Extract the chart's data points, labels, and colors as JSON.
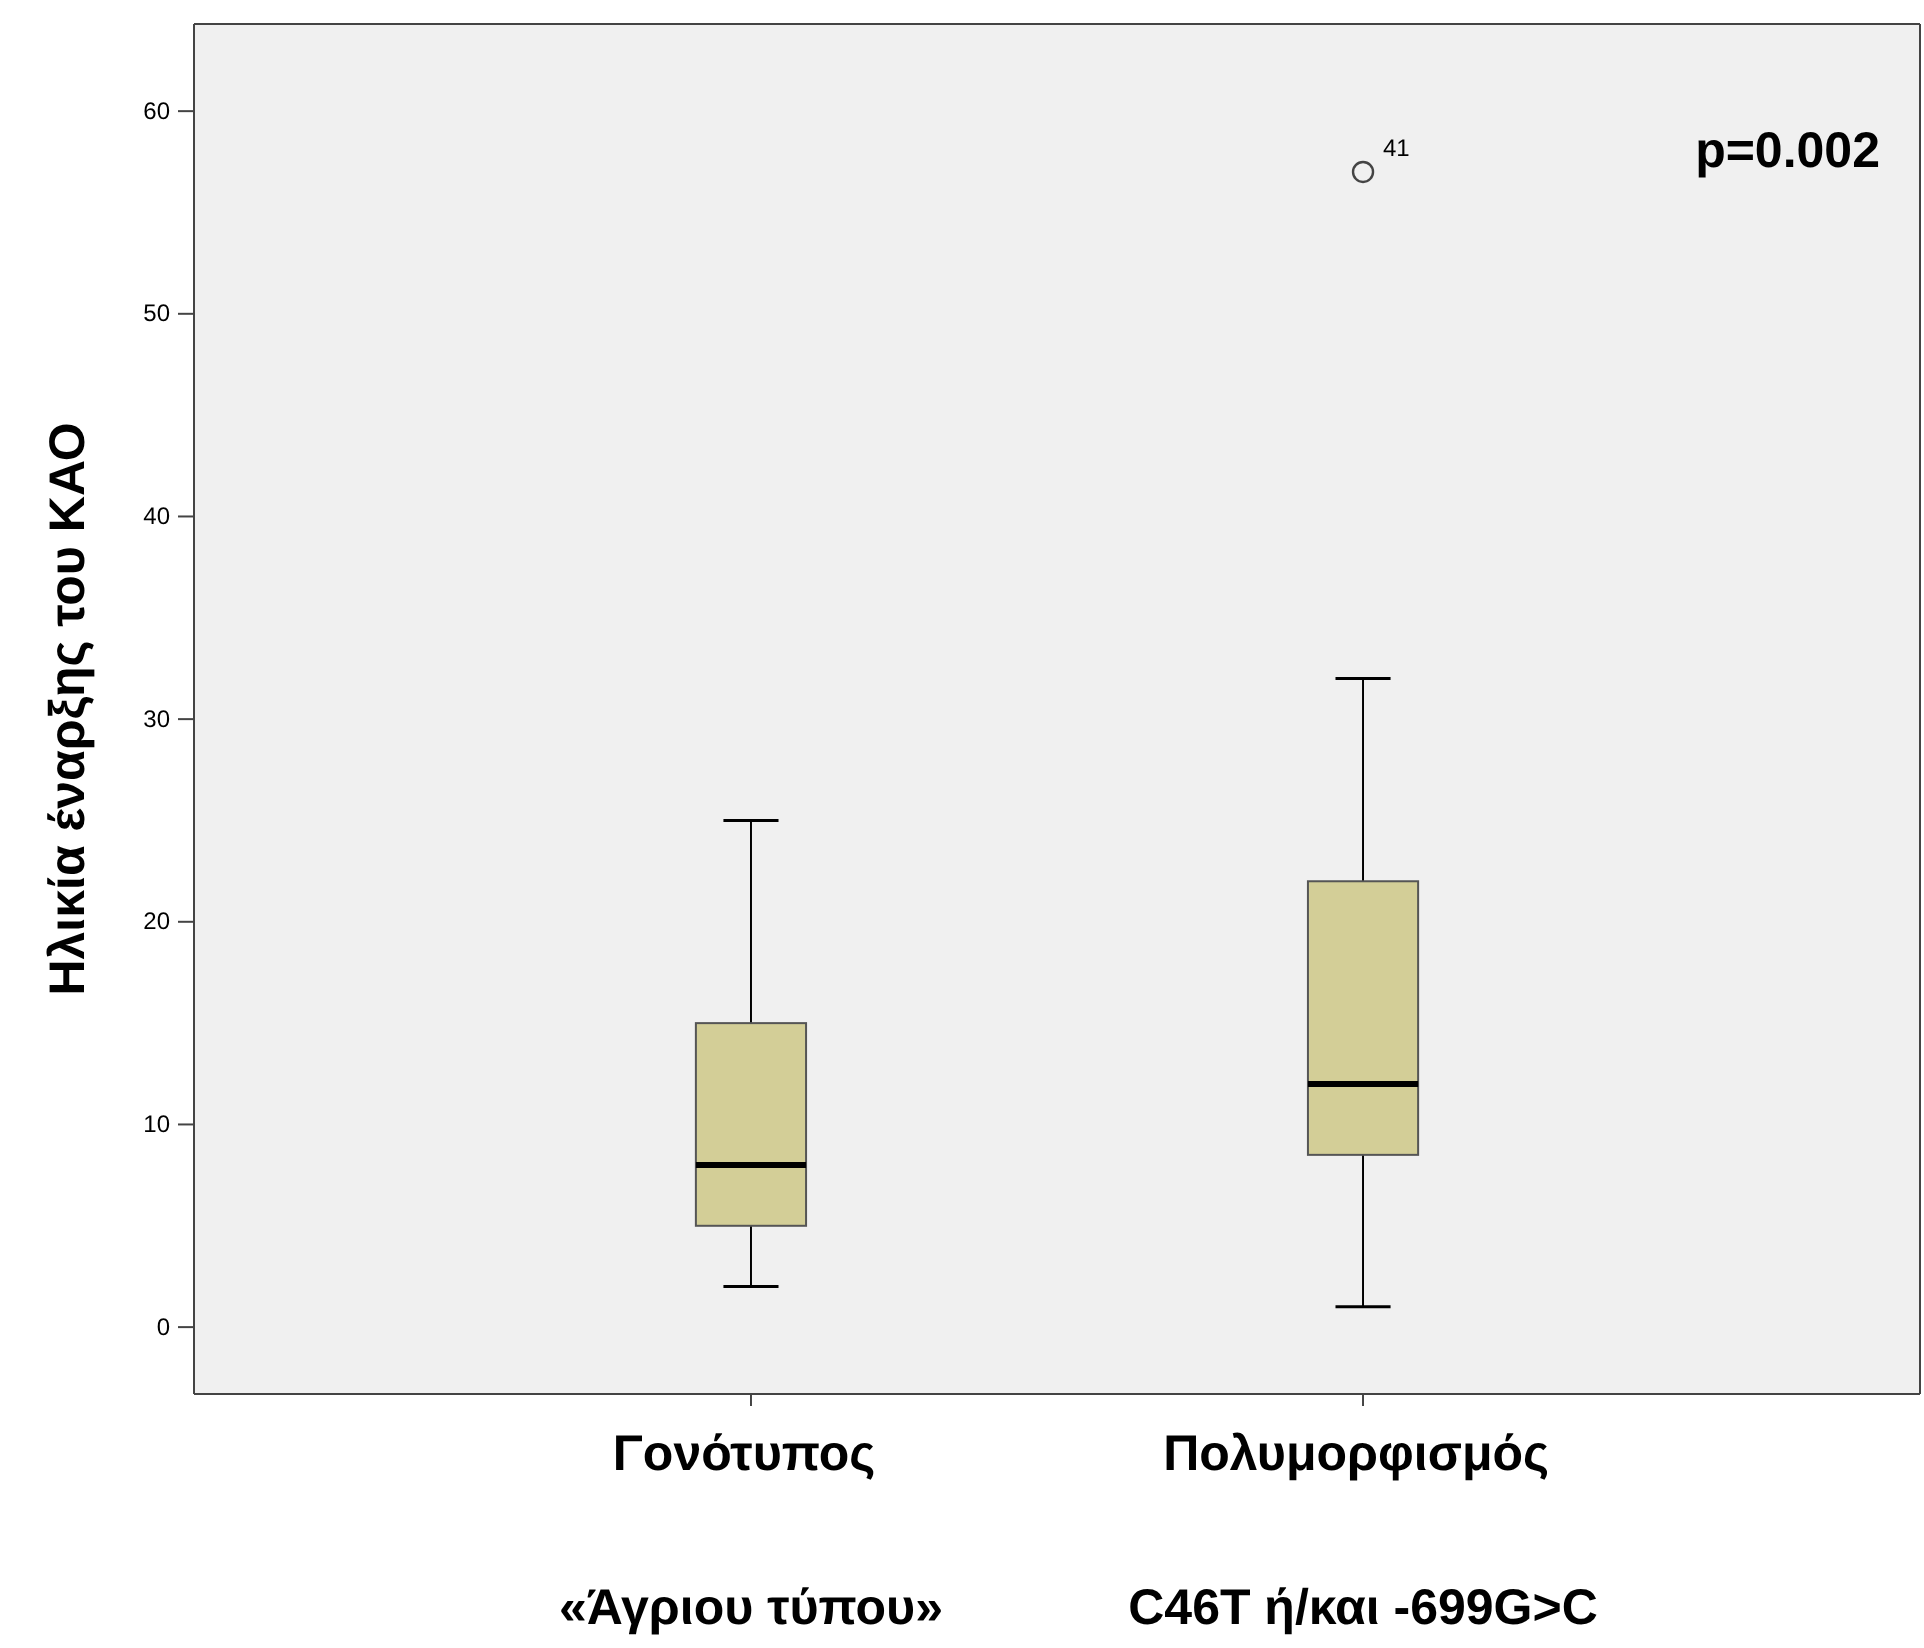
{
  "chart_data": {
    "type": "box",
    "ylabel": "Ηλικία έναρξης του ΚΑΟ",
    "categories": [
      "Γονότυπος «Άγριου τύπου»",
      "Πολυμορφισμός C46T ή/και -699G>C"
    ],
    "boxes": [
      {
        "low": 2,
        "q1": 5,
        "median": 8,
        "q3": 15,
        "high": 25
      },
      {
        "low": 1,
        "q1": 8.5,
        "median": 12,
        "q3": 22,
        "high": 32,
        "outliers": [
          57
        ]
      }
    ],
    "color": "#d3ce97",
    "ylim": [
      -3.3,
      64.3
    ],
    "yticks": [
      0,
      10,
      20,
      30,
      40,
      50,
      60
    ],
    "grid": false,
    "annotations": [
      "41",
      "p=0.002"
    ]
  }
}
